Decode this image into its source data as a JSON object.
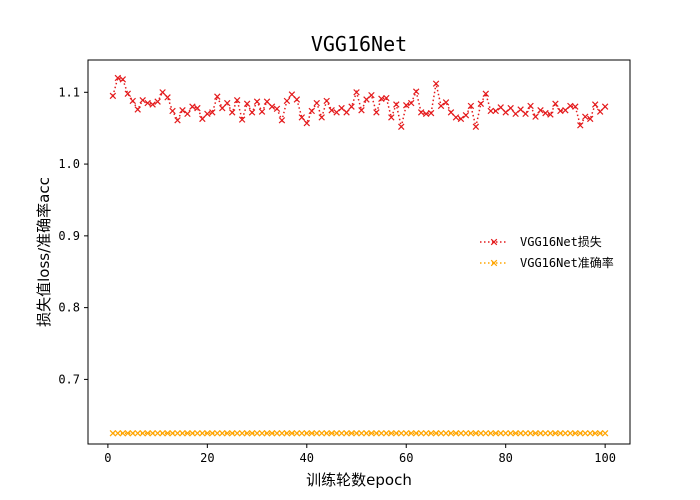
{
  "chart_data": {
    "type": "line",
    "title": "VGG16Net",
    "xlabel": "训练轮数epoch",
    "ylabel": "损失值loss/准确率acc",
    "xlim": [
      -4,
      105
    ],
    "ylim": [
      0.61,
      1.145
    ],
    "xticks": [
      0,
      20,
      40,
      60,
      80,
      100
    ],
    "yticks": [
      0.7,
      0.8,
      0.9,
      1.0,
      1.1
    ],
    "ytick_labels": [
      "0.7",
      "0.8",
      "0.9",
      "1.0",
      "1.1"
    ],
    "grid": false,
    "legend_position": "center-right",
    "x": [
      1,
      2,
      3,
      4,
      5,
      6,
      7,
      8,
      9,
      10,
      11,
      12,
      13,
      14,
      15,
      16,
      17,
      18,
      19,
      20,
      21,
      22,
      23,
      24,
      25,
      26,
      27,
      28,
      29,
      30,
      31,
      32,
      33,
      34,
      35,
      36,
      37,
      38,
      39,
      40,
      41,
      42,
      43,
      44,
      45,
      46,
      47,
      48,
      49,
      50,
      51,
      52,
      53,
      54,
      55,
      56,
      57,
      58,
      59,
      60,
      61,
      62,
      63,
      64,
      65,
      66,
      67,
      68,
      69,
      70,
      71,
      72,
      73,
      74,
      75,
      76,
      77,
      78,
      79,
      80,
      81,
      82,
      83,
      84,
      85,
      86,
      87,
      88,
      89,
      90,
      91,
      92,
      93,
      94,
      95,
      96,
      97,
      98,
      99,
      100
    ],
    "series": [
      {
        "name": "VGG16Net损失",
        "color": "#e41a1c",
        "linestyle": "dotted",
        "marker": "x",
        "values": [
          1.095,
          1.12,
          1.118,
          1.098,
          1.088,
          1.076,
          1.089,
          1.085,
          1.083,
          1.087,
          1.1,
          1.093,
          1.074,
          1.061,
          1.075,
          1.07,
          1.08,
          1.078,
          1.063,
          1.07,
          1.072,
          1.094,
          1.078,
          1.085,
          1.072,
          1.089,
          1.062,
          1.084,
          1.072,
          1.087,
          1.073,
          1.087,
          1.08,
          1.077,
          1.061,
          1.088,
          1.097,
          1.09,
          1.065,
          1.057,
          1.074,
          1.085,
          1.065,
          1.088,
          1.075,
          1.072,
          1.078,
          1.072,
          1.08,
          1.1,
          1.075,
          1.09,
          1.096,
          1.072,
          1.091,
          1.092,
          1.065,
          1.083,
          1.052,
          1.082,
          1.085,
          1.101,
          1.072,
          1.07,
          1.071,
          1.112,
          1.081,
          1.086,
          1.072,
          1.065,
          1.063,
          1.068,
          1.081,
          1.052,
          1.084,
          1.098,
          1.074,
          1.074,
          1.079,
          1.072,
          1.078,
          1.07,
          1.076,
          1.07,
          1.081,
          1.066,
          1.075,
          1.071,
          1.069,
          1.084,
          1.074,
          1.075,
          1.081,
          1.08,
          1.054,
          1.066,
          1.063,
          1.083,
          1.073,
          1.08
        ]
      },
      {
        "name": "VGG16Net准确率",
        "color": "#ffa500",
        "linestyle": "dotted",
        "marker": "x",
        "values": [
          0.625,
          0.625,
          0.625,
          0.625,
          0.625,
          0.625,
          0.625,
          0.625,
          0.625,
          0.625,
          0.625,
          0.625,
          0.625,
          0.625,
          0.625,
          0.625,
          0.625,
          0.625,
          0.625,
          0.625,
          0.625,
          0.625,
          0.625,
          0.625,
          0.625,
          0.625,
          0.625,
          0.625,
          0.625,
          0.625,
          0.625,
          0.625,
          0.625,
          0.625,
          0.625,
          0.625,
          0.625,
          0.625,
          0.625,
          0.625,
          0.625,
          0.625,
          0.625,
          0.625,
          0.625,
          0.625,
          0.625,
          0.625,
          0.625,
          0.625,
          0.625,
          0.625,
          0.625,
          0.625,
          0.625,
          0.625,
          0.625,
          0.625,
          0.625,
          0.625,
          0.625,
          0.625,
          0.625,
          0.625,
          0.625,
          0.625,
          0.625,
          0.625,
          0.625,
          0.625,
          0.625,
          0.625,
          0.625,
          0.625,
          0.625,
          0.625,
          0.625,
          0.625,
          0.625,
          0.625,
          0.625,
          0.625,
          0.625,
          0.625,
          0.625,
          0.625,
          0.625,
          0.625,
          0.625,
          0.625,
          0.625,
          0.625,
          0.625,
          0.625,
          0.625,
          0.625,
          0.625,
          0.625,
          0.625,
          0.625
        ]
      }
    ]
  }
}
